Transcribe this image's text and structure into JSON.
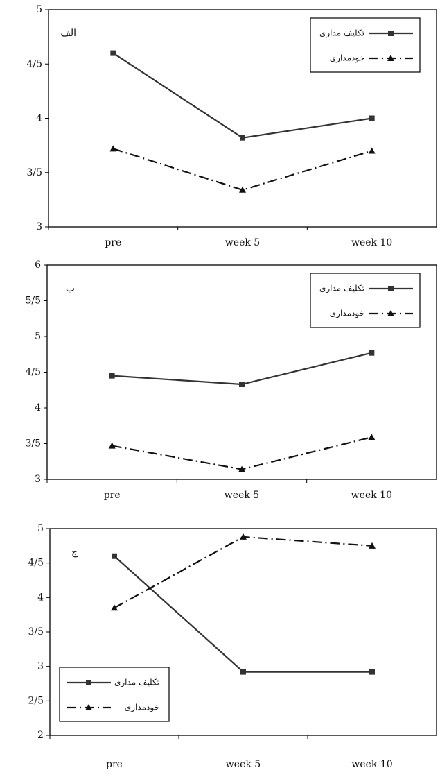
{
  "chart_data": [
    {
      "type": "line",
      "title": "الف",
      "categories": [
        "pre",
        "week 5",
        "week 10"
      ],
      "series": [
        {
          "name": "تکلیف مداری",
          "color": "#333333",
          "line_style": "solid",
          "marker": "square",
          "values": [
            4.6,
            3.82,
            4.0
          ]
        },
        {
          "name": "خودمداری",
          "color": "#111111",
          "line_style": "dashdot",
          "marker": "triangle",
          "values": [
            3.72,
            3.34,
            3.7
          ]
        }
      ],
      "ylim": [
        3,
        5
      ],
      "yticks": [
        3,
        {
          "value": 3.5,
          "label": "3/5"
        },
        4,
        {
          "value": 4.5,
          "label": "4/5"
        },
        5
      ],
      "legend": "top-right"
    },
    {
      "type": "line",
      "title": "ب",
      "categories": [
        "pre",
        "week 5",
        "week 10"
      ],
      "series": [
        {
          "name": "تکلیف مداری",
          "color": "#333333",
          "line_style": "solid",
          "marker": "square",
          "values": [
            4.45,
            4.33,
            4.77
          ]
        },
        {
          "name": "خودمداری",
          "color": "#111111",
          "line_style": "dashdot",
          "marker": "triangle",
          "values": [
            3.47,
            3.14,
            3.59
          ]
        }
      ],
      "ylim": [
        3,
        6
      ],
      "yticks": [
        3,
        {
          "value": 3.5,
          "label": "3/5"
        },
        4,
        {
          "value": 4.5,
          "label": "4/5"
        },
        5,
        {
          "value": 5.5,
          "label": "5/5"
        },
        6
      ],
      "legend": "top-right"
    },
    {
      "type": "line",
      "title": "ج",
      "categories": [
        "pre",
        "week 5",
        "week 10"
      ],
      "series": [
        {
          "name": "تکلیف مداری",
          "color": "#333333",
          "line_style": "solid",
          "marker": "square",
          "values": [
            4.6,
            2.92,
            2.92
          ]
        },
        {
          "name": "خودمداری",
          "color": "#111111",
          "line_style": "dashdot",
          "marker": "triangle",
          "values": [
            3.85,
            4.88,
            4.75
          ]
        }
      ],
      "ylim": [
        2,
        5
      ],
      "yticks": [
        2,
        {
          "value": 2.5,
          "label": "2/5"
        },
        3,
        {
          "value": 3.5,
          "label": "3/5"
        },
        4,
        {
          "value": 4.5,
          "label": "4/5"
        },
        5
      ],
      "legend": "bottom-left"
    }
  ]
}
